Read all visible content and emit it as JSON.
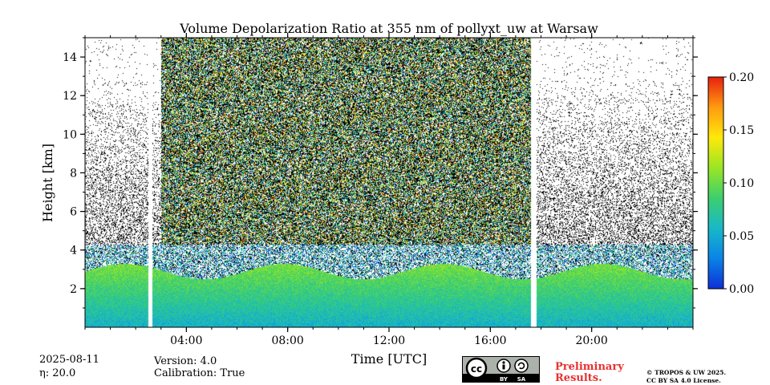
{
  "chart_data": {
    "type": "heatmap",
    "title": "Volume Depolarization Ratio at 355 nm of pollyxt_uw at Warsaw",
    "xlabel": "Time [UTC]",
    "ylabel": "Height [km]",
    "xlim": [
      0,
      24
    ],
    "ylim": [
      0,
      15
    ],
    "x_ticks": [
      {
        "value": 4,
        "label": "04:00"
      },
      {
        "value": 8,
        "label": "08:00"
      },
      {
        "value": 12,
        "label": "12:00"
      },
      {
        "value": 16,
        "label": "16:00"
      },
      {
        "value": 20,
        "label": "20:00"
      }
    ],
    "y_ticks": [
      {
        "value": 2,
        "label": "2"
      },
      {
        "value": 4,
        "label": "4"
      },
      {
        "value": 6,
        "label": "6"
      },
      {
        "value": 8,
        "label": "8"
      },
      {
        "value": 10,
        "label": "10"
      },
      {
        "value": 12,
        "label": "12"
      },
      {
        "value": 14,
        "label": "14"
      }
    ],
    "colorbar": {
      "range": [
        0.0,
        0.2
      ],
      "ticks": [
        {
          "value": 0.0,
          "label": "0.00"
        },
        {
          "value": 0.05,
          "label": "0.05"
        },
        {
          "value": 0.1,
          "label": "0.10"
        },
        {
          "value": 0.15,
          "label": "0.15"
        },
        {
          "value": 0.2,
          "label": "0.20"
        }
      ],
      "colormap": [
        "#0d2fd8",
        "#0a84e6",
        "#18b8c8",
        "#3ccf6e",
        "#9ae623",
        "#ffe80a",
        "#ff9a10",
        "#e82010"
      ]
    },
    "data_gaps_utc": [
      [
        2.5,
        2.65
      ],
      [
        17.6,
        17.8
      ]
    ],
    "noisy_period_utc": [
      3.0,
      17.6
    ],
    "boundary_layer_top_km": 3.5
  },
  "info": {
    "date": "2025-08-11",
    "eta": "η: 20.0",
    "version": "Version: 4.0",
    "calibration": "Calibration: True"
  },
  "badges": {
    "license_icon": "cc-by-sa-icon",
    "preliminary_line1": "Preliminary",
    "preliminary_line2": "Results.",
    "copyright_line1": "© TROPOS & UW 2025.",
    "copyright_line2": "CC BY SA 4.0 License."
  }
}
